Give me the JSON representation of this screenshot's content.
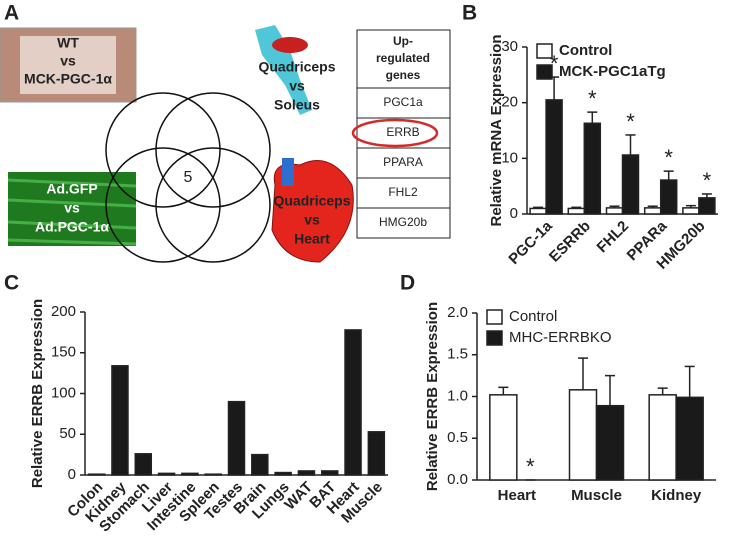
{
  "panel_labels": [
    "A",
    "B",
    "C",
    "D"
  ],
  "panel_a": {
    "photo_label": [
      "WT",
      "vs",
      "MCK-PGC-1α"
    ],
    "culture_label": [
      "Ad.GFP",
      "vs",
      "Ad.PGC-1α"
    ],
    "muscle_label": [
      "Quadriceps",
      "vs",
      "Soleus"
    ],
    "heart_label": [
      "Quadriceps",
      "vs",
      "Heart"
    ],
    "venn_center": 5,
    "table": {
      "header": [
        "Up-",
        "regulated",
        "genes"
      ],
      "rows": [
        "PGC1a",
        "ERRB",
        "PPARA",
        "FHL2",
        "HMG20b"
      ]
    }
  },
  "chart_data": [
    {
      "type": "bar",
      "ylabel": "Relative mRNA Expression",
      "categories": [
        "PGC-1a",
        "ESRRb",
        "FHL2",
        "PPARa",
        "HMG20b"
      ],
      "series": [
        {
          "name": "Control",
          "color": "#ffffff",
          "values": [
            1,
            1,
            1.1,
            1.1,
            1.1
          ],
          "errors": [
            0.2,
            0.2,
            0.3,
            0.3,
            0.4
          ]
        },
        {
          "name": "MCK-PGC1aTg",
          "color": "#1a1a1a",
          "values": [
            20.5,
            16.3,
            10.6,
            6.1,
            2.9
          ],
          "errors": [
            4.1,
            2,
            3.6,
            1.6,
            0.7
          ],
          "markers": [
            "*",
            "*",
            "*",
            "*",
            "*"
          ]
        }
      ],
      "ylim": [
        0,
        30
      ],
      "yticks": [
        0,
        10,
        20,
        30
      ],
      "legend": "top-left",
      "grid": false
    },
    {
      "type": "bar",
      "ylabel": "Relative ERRB Expression",
      "categories": [
        "Colon",
        "Kidney",
        "Stomach",
        "Liver",
        "Intestine",
        "Spleen",
        "Testes",
        "Brain",
        "Lungs",
        "WAT",
        "BAT",
        "Heart",
        "Muscle"
      ],
      "values": [
        1,
        134,
        26,
        2,
        2,
        1,
        90,
        25,
        3,
        5,
        5,
        178,
        53
      ],
      "color": "#1a1a1a",
      "ylim": [
        0,
        200
      ],
      "yticks": [
        0,
        50,
        100,
        150,
        200
      ],
      "grid": false
    },
    {
      "type": "bar",
      "ylabel": "Relative ERRB Expression",
      "categories": [
        "Heart",
        "Muscle",
        "Kidney"
      ],
      "series": [
        {
          "name": "Control",
          "color": "#ffffff",
          "values": [
            1.02,
            1.08,
            1.02
          ],
          "errors": [
            0.09,
            0.38,
            0.08
          ]
        },
        {
          "name": "MHC-ERRBKO",
          "color": "#1a1a1a",
          "values": [
            0,
            0.89,
            0.99
          ],
          "errors": [
            0,
            0.36,
            0.37
          ],
          "markers": [
            "*",
            null,
            null
          ]
        }
      ],
      "ylim": [
        0,
        2
      ],
      "yticks": [
        {
          "value": 0,
          "label": "0.0"
        },
        0.5,
        {
          "value": 1,
          "label": "1.0"
        },
        1.5,
        {
          "value": 2,
          "label": "2.0"
        }
      ],
      "legend": "top-left",
      "grid": false
    }
  ]
}
